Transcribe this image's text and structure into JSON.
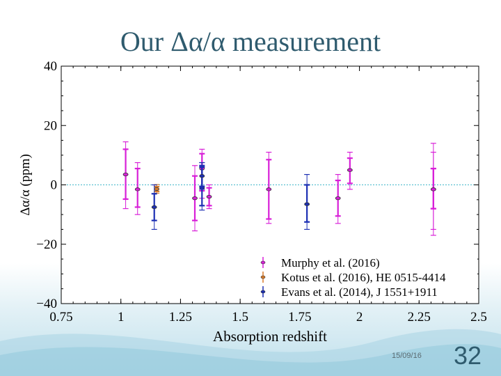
{
  "slide": {
    "title": "Our Δα/α measurement",
    "date": "15/09/16",
    "page_number": "32"
  },
  "chart_data": {
    "type": "scatter",
    "xlabel": "Absorption redshift",
    "ylabel": "Δα/α (ppm)",
    "xlim": [
      0.75,
      2.5
    ],
    "ylim": [
      -40,
      40
    ],
    "xticks": [
      0.75,
      1,
      1.25,
      1.5,
      1.75,
      2,
      2.25,
      2.5
    ],
    "xtick_labels": [
      "0.75",
      "1",
      "1.25",
      "1.5",
      "1.75",
      "2",
      "2.25",
      "2.5"
    ],
    "yticks": [
      -40,
      -20,
      0,
      20,
      40
    ],
    "ytick_labels": [
      "−40",
      "−20",
      "0",
      "20",
      "40"
    ],
    "reference_line": 0,
    "legend_position": "bottom-right",
    "series": [
      {
        "name": "Murphy et al. (2016)",
        "color": "#d81fd8",
        "points": [
          {
            "x": 1.02,
            "y": 3.5,
            "stat_lo": -4.8,
            "stat_hi": 12,
            "sys_lo": -8,
            "sys_hi": 14.5
          },
          {
            "x": 1.07,
            "y": -1.5,
            "stat_lo": -7.5,
            "stat_hi": 5.5,
            "sys_lo": -10,
            "sys_hi": 7.5
          },
          {
            "x": 1.31,
            "y": -4.5,
            "stat_lo": -12,
            "stat_hi": 3,
            "sys_lo": -15.5,
            "sys_hi": 6.5
          },
          {
            "x": 1.34,
            "y": 5.5,
            "stat_lo": -2,
            "stat_hi": 10.5,
            "sys_lo": -4.5,
            "sys_hi": 12
          },
          {
            "x": 1.37,
            "y": -4,
            "stat_lo": -7,
            "stat_hi": -1,
            "sys_lo": -8,
            "sys_hi": 0
          },
          {
            "x": 1.62,
            "y": -1.5,
            "stat_lo": -11.5,
            "stat_hi": 8.5,
            "sys_lo": -13,
            "sys_hi": 11
          },
          {
            "x": 1.91,
            "y": -4.5,
            "stat_lo": -10.5,
            "stat_hi": 1.5,
            "sys_lo": -13,
            "sys_hi": 3.5
          },
          {
            "x": 1.96,
            "y": 5,
            "stat_lo": 0.5,
            "stat_hi": 9,
            "sys_lo": -1.5,
            "sys_hi": 11
          },
          {
            "x": 2.31,
            "y": -1.5,
            "stat_lo": -8,
            "stat_hi": 5.5,
            "sys_lo": -15,
            "sys_hi": 11
          },
          {
            "x": 2.31,
            "y": -1.5,
            "stat_lo": -8,
            "stat_hi": 5.5,
            "sys_lo": -17,
            "sys_hi": 14
          }
        ]
      },
      {
        "name": "Kotus et al. (2016), HE 0515-4414",
        "color": "#d87a2a",
        "points": [
          {
            "x": 1.15,
            "y": -1.4,
            "stat_lo": -2.2,
            "stat_hi": -0.6,
            "sys_lo": -2.8,
            "sys_hi": 0.1
          }
        ]
      },
      {
        "name": "Evans et al. (2014), J 1551+1911",
        "color": "#1c2fb3",
        "points": [
          {
            "x": 1.14,
            "y": -7.5,
            "stat_lo": -12,
            "stat_hi": -3,
            "sys_lo": -15,
            "sys_hi": 0
          },
          {
            "x": 1.34,
            "y": -1,
            "stat_lo": -7,
            "stat_hi": 6,
            "sys_lo": -8.5,
            "sys_hi": 7.5
          },
          {
            "x": 1.34,
            "y": 3,
            "stat_lo": -0.5,
            "stat_hi": 6.5,
            "sys_lo": -1.5,
            "sys_hi": 7.5
          },
          {
            "x": 1.78,
            "y": -6.5,
            "stat_lo": -12.5,
            "stat_hi": 0,
            "sys_lo": -15,
            "sys_hi": 3.5
          }
        ]
      }
    ]
  }
}
